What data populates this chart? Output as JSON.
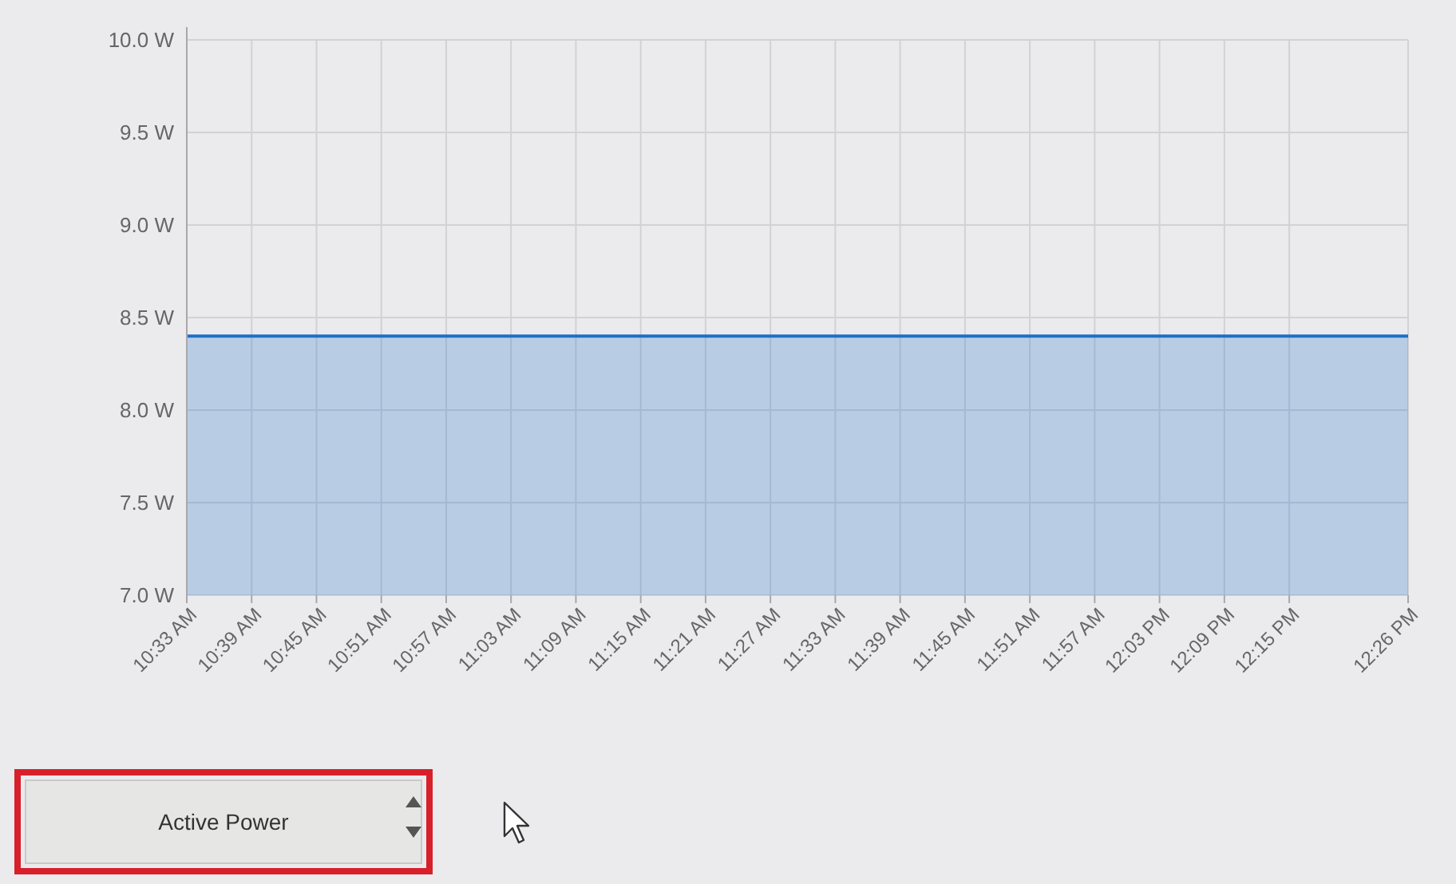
{
  "chart_data": {
    "type": "area",
    "x": [
      10.55,
      12.4333
    ],
    "series": [
      {
        "color": "#1f6fc6",
        "values": [
          8.4,
          8.4
        ]
      }
    ],
    "xlim": [
      10.55,
      12.4333
    ],
    "xticks": [
      {
        "value": 10.55,
        "label": "10:33 AM"
      },
      {
        "value": 10.65,
        "label": "10:39 AM"
      },
      {
        "value": 10.75,
        "label": "10:45 AM"
      },
      {
        "value": 10.85,
        "label": "10:51 AM"
      },
      {
        "value": 10.95,
        "label": "10:57 AM"
      },
      {
        "value": 11.05,
        "label": "11:03 AM"
      },
      {
        "value": 11.15,
        "label": "11:09 AM"
      },
      {
        "value": 11.25,
        "label": "11:15 AM"
      },
      {
        "value": 11.35,
        "label": "11:21 AM"
      },
      {
        "value": 11.45,
        "label": "11:27 AM"
      },
      {
        "value": 11.55,
        "label": "11:33 AM"
      },
      {
        "value": 11.65,
        "label": "11:39 AM"
      },
      {
        "value": 11.75,
        "label": "11:45 AM"
      },
      {
        "value": 11.85,
        "label": "11:51 AM"
      },
      {
        "value": 11.95,
        "label": "11:57 AM"
      },
      {
        "value": 12.05,
        "label": "12:03 PM"
      },
      {
        "value": 12.15,
        "label": "12:09 PM"
      },
      {
        "value": 12.25,
        "label": "12:15 PM"
      },
      {
        "value": 12.4333,
        "label": "12:26 PM"
      }
    ],
    "ylim": [
      7,
      10
    ],
    "yticks": [
      {
        "value": 7,
        "label": "7.0 W"
      },
      {
        "value": 7.5,
        "label": "7.5 W"
      },
      {
        "value": 8,
        "label": "8.0 W"
      },
      {
        "value": 8.5,
        "label": "8.5 W"
      },
      {
        "value": 9,
        "label": "9.0 W"
      },
      {
        "value": 9.5,
        "label": "9.5 W"
      },
      {
        "value": 10,
        "label": "10.0 W"
      }
    ],
    "grid": true,
    "annotations": [
      "Active Power"
    ]
  }
}
